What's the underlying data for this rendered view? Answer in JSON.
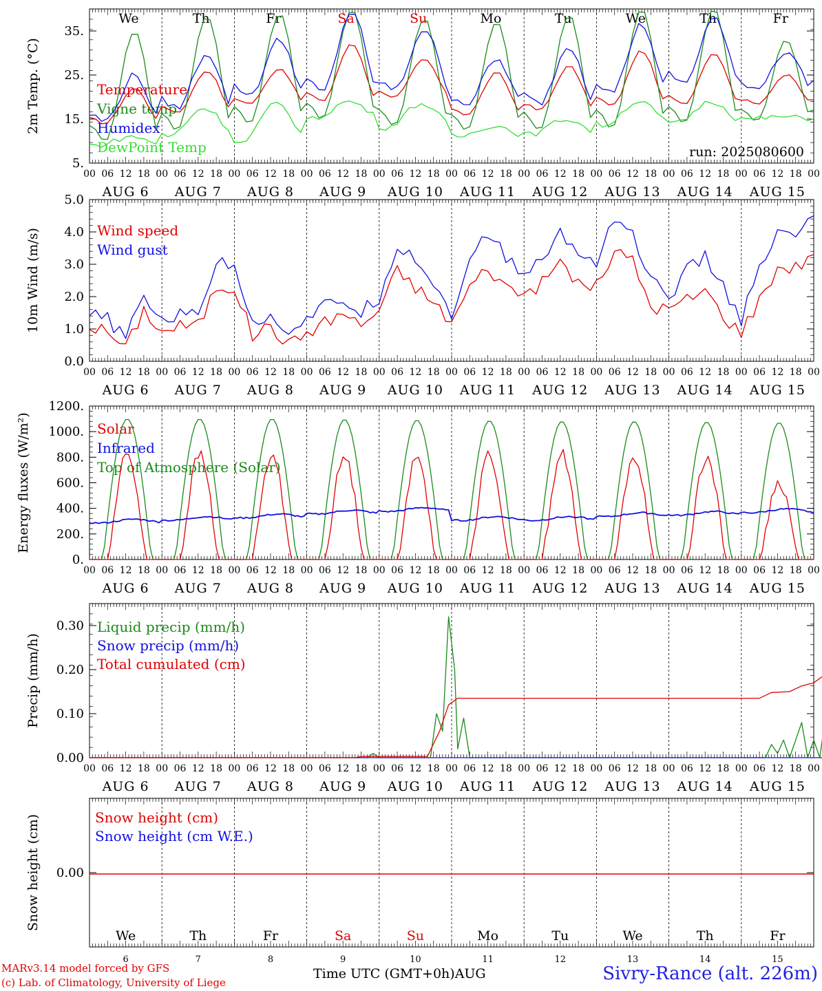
{
  "days": [
    "6",
    "7",
    "8",
    "9",
    "10",
    "11",
    "12",
    "13",
    "14",
    "15"
  ],
  "month": "AUG",
  "weekdays": [
    "We",
    "Th",
    "Fr",
    "Sa",
    "Su",
    "Mo",
    "Tu",
    "We",
    "Th",
    "Fr"
  ],
  "weekend_color": "#e00000",
  "hour_ticks": [
    "00",
    "06",
    "12",
    "18"
  ],
  "footer": {
    "model": "MARv3.14 model forced by GFS",
    "credit": "(c) Lab. of Climatology, University of Liege",
    "time_label": "Time UTC (GMT+0h)",
    "month_label": "AUG",
    "station": "Sivry-Rance (alt. 226m)"
  },
  "chart_data": [
    {
      "type": "line",
      "ylabel": "2m Temp. (°C)",
      "ylim": [
        5,
        40
      ],
      "yticks": [
        5,
        15,
        25,
        35
      ],
      "ytick_labels": [
        "5.",
        "15.",
        "25.",
        "35."
      ],
      "annotation": "run: 2025080600",
      "x": "hours since AUG 6 00 UTC (10 days)",
      "series": [
        {
          "name": "Temperature",
          "color": "#e00000",
          "min": [
            14.0,
            16.5,
            18.5,
            19.0,
            20.0,
            16.0,
            17.0,
            18.0,
            18.5,
            18.5
          ],
          "max": [
            22.0,
            26.0,
            26.5,
            32.0,
            28.5,
            25.5,
            27.0,
            30.5,
            30.0,
            25.0
          ]
        },
        {
          "name": "Vigne temp",
          "color": "#1a8a1a",
          "min": [
            10.0,
            12.5,
            14.0,
            15.0,
            13.5,
            12.5,
            12.5,
            13.0,
            14.0,
            14.5
          ],
          "max": [
            35.0,
            38.5,
            39.0,
            40.0,
            38.0,
            37.0,
            38.5,
            40.0,
            40.0,
            33.0
          ]
        },
        {
          "name": "Humidex",
          "color": "#1010e0",
          "min": [
            14.5,
            17.5,
            20.5,
            21.0,
            21.5,
            18.5,
            18.5,
            21.0,
            23.0,
            22.0
          ],
          "max": [
            25.0,
            30.0,
            33.0,
            39.5,
            35.5,
            28.5,
            31.5,
            36.5,
            38.0,
            30.5
          ]
        },
        {
          "name": "DewPoint Temp",
          "color": "#33dd33",
          "min": [
            9.0,
            11.0,
            9.5,
            15.0,
            13.0,
            11.0,
            11.5,
            13.5,
            14.0,
            15.0
          ],
          "max": [
            11.0,
            17.5,
            18.5,
            19.0,
            18.5,
            13.5,
            15.0,
            19.0,
            19.0,
            15.5
          ]
        }
      ]
    },
    {
      "type": "line",
      "ylabel": "10m Wind (m/s)",
      "ylim": [
        0,
        5
      ],
      "yticks": [
        0,
        1,
        2,
        3,
        4,
        5
      ],
      "ytick_labels": [
        "0.0",
        "1.0",
        "2.0",
        "3.0",
        "4.0",
        "5.0"
      ],
      "x": [
        0,
        6,
        12,
        18,
        24,
        30,
        36,
        42,
        48,
        54,
        60,
        66,
        72,
        78,
        84,
        90,
        96,
        102,
        108,
        114,
        120,
        126,
        132,
        138,
        144,
        150,
        156,
        162,
        168,
        174,
        180,
        186,
        192,
        198,
        204,
        210,
        216,
        222,
        228,
        234,
        240
      ],
      "series": [
        {
          "name": "Wind speed",
          "color": "#e00000",
          "values": [
            1.1,
            0.9,
            0.4,
            1.6,
            0.9,
            1.1,
            1.1,
            2.3,
            2.3,
            0.8,
            1.1,
            0.5,
            0.9,
            1.2,
            1.5,
            1.1,
            1.6,
            2.8,
            2.3,
            1.8,
            1.2,
            2.3,
            2.9,
            2.3,
            2.1,
            2.4,
            3.1,
            2.4,
            2.3,
            3.4,
            3.1,
            1.7,
            1.6,
            1.9,
            2.2,
            1.4,
            0.9,
            1.9,
            2.9,
            2.9,
            3.3
          ]
        },
        {
          "name": "Wind gust",
          "color": "#1010e0",
          "values": [
            1.4,
            1.3,
            0.7,
            2.0,
            1.3,
            1.4,
            1.6,
            3.0,
            3.0,
            1.3,
            1.3,
            1.0,
            1.3,
            1.7,
            1.9,
            1.5,
            2.0,
            3.6,
            3.2,
            2.4,
            1.5,
            3.0,
            4.0,
            3.2,
            2.7,
            3.1,
            4.0,
            3.3,
            3.1,
            4.5,
            3.9,
            2.5,
            2.0,
            2.8,
            3.2,
            2.3,
            1.3,
            2.8,
            3.9,
            3.9,
            4.5
          ]
        }
      ]
    },
    {
      "type": "line",
      "ylabel": "Energy fluxes (W/m²)",
      "ylim": [
        0,
        1200
      ],
      "yticks": [
        0,
        200,
        400,
        600,
        800,
        1000,
        1200
      ],
      "ytick_labels": [
        "0.",
        "200.",
        "400.",
        "600.",
        "800.",
        "1000.",
        "1200."
      ],
      "series": [
        {
          "name": "Solar",
          "color": "#e00000",
          "daily_peak": [
            830,
            820,
            810,
            800,
            790,
            820,
            830,
            800,
            800,
            600
          ]
        },
        {
          "name": "Infrared",
          "color": "#1010e0",
          "daily_mean": [
            300,
            320,
            340,
            370,
            390,
            320,
            320,
            350,
            360,
            380
          ]
        },
        {
          "name": "Top of Atmosphere (Solar)",
          "color": "#1a8a1a",
          "daily_peak": [
            1100,
            1100,
            1100,
            1095,
            1090,
            1085,
            1080,
            1080,
            1075,
            1070
          ]
        }
      ]
    },
    {
      "type": "line",
      "ylabel": "Precip (mm/h)",
      "ylim": [
        0,
        0.35
      ],
      "yticks": [
        0,
        0.1,
        0.2,
        0.3
      ],
      "ytick_labels": [
        "0.00",
        "0.10",
        "0.20",
        "0.30"
      ],
      "series": [
        {
          "name": "Liquid precip (mm/h)",
          "color": "#1a8a1a",
          "points": [
            [
              0,
              0
            ],
            [
              92,
              0
            ],
            [
              94,
              0.01
            ],
            [
              96,
              0
            ],
            [
              113,
              0
            ],
            [
              115,
              0.1
            ],
            [
              117,
              0.06
            ],
            [
              119,
              0.32
            ],
            [
              121,
              0.2
            ],
            [
              122,
              0.02
            ],
            [
              124,
              0.09
            ],
            [
              126,
              0
            ],
            [
              224,
              0
            ],
            [
              226,
              0.03
            ],
            [
              228,
              0.01
            ],
            [
              230,
              0.04
            ],
            [
              232,
              0
            ],
            [
              236,
              0.08
            ],
            [
              238,
              0
            ],
            [
              240,
              0.04
            ],
            [
              242,
              0
            ],
            [
              244,
              0.1
            ],
            [
              246,
              0.05
            ],
            [
              248,
              0
            ]
          ]
        },
        {
          "name": "Snow precip (mm/h)",
          "color": "#1010e0",
          "points": [
            [
              0,
              0
            ],
            [
              248,
              0
            ]
          ]
        },
        {
          "name": "Total cumulated (cm)",
          "color": "#e00000",
          "points": [
            [
              0,
              0
            ],
            [
              88,
              0
            ],
            [
              90,
              0.003
            ],
            [
              112,
              0.003
            ],
            [
              116,
              0.06
            ],
            [
              119,
              0.12
            ],
            [
              122,
              0.135
            ],
            [
              222,
              0.135
            ],
            [
              226,
              0.148
            ],
            [
              232,
              0.15
            ],
            [
              236,
              0.163
            ],
            [
              240,
              0.17
            ],
            [
              244,
              0.19
            ],
            [
              246,
              0.197
            ],
            [
              248,
              0.198
            ]
          ]
        }
      ]
    },
    {
      "type": "line",
      "ylabel": "Snow height (cm)",
      "yticks": [
        0
      ],
      "ytick_labels": [
        "0.00"
      ],
      "series": [
        {
          "name": "Snow height (cm)",
          "color": "#e00000",
          "values": [
            0,
            0
          ]
        },
        {
          "name": "Snow height (cm W.E.)",
          "color": "#1010e0",
          "values": [
            0,
            0
          ]
        }
      ]
    }
  ]
}
